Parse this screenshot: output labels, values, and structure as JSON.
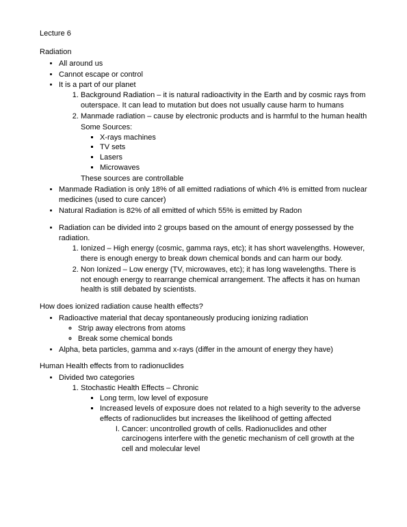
{
  "title": "Lecture 6",
  "h1": "Radiation",
  "b1": "All around us",
  "b2": "Cannot escape or control",
  "b3": "It is a part of our planet",
  "n1": "Background Radiation – it is natural radioactivity in the Earth and by cosmic rays from outerspace. It can lead to mutation but does not usually cause harm to humans",
  "n2": "Manmade radiation – cause by electronic products and is harmful to the human health",
  "srclabel": "Some Sources:",
  "s1": "X-rays machines",
  "s2": "TV sets",
  "s3": "Lasers",
  "s4": "Microwaves",
  "srcnote": "These sources are controllable",
  "b4": "Manmade Radiation is only 18% of all emitted radiations of which 4% is emitted from nuclear medicines (used to cure cancer)",
  "b5": "Natural Radiation is 82% of all emitted of which 55% is emitted by Radon",
  "b6": "Radiation can be divided into 2 groups based on the amount of energy possessed by the radiation.",
  "g1": "Ionized – High energy (cosmic, gamma rays, etc); it has short wavelengths. However, there is enough energy to break down chemical bonds and can harm our body.",
  "g2": "Non Ionized – Low energy (TV, microwaves, etc); it has long wavelengths. There is not enough energy to rearrange chemical arrangement. The affects it has on human health is still debated by scientists.",
  "h2": "How does ionized radiation cause health effects?",
  "c1": "Radioactive material that decay spontaneously producing ionizing radiation",
  "c1a": "Strip away electrons from atoms",
  "c1b": "Break some chemical bonds",
  "c2": "Alpha, beta particles, gamma and x-rays (differ in the amount of energy they have)",
  "h3": "Human Health effects from to radionuclides",
  "d1": "Divided two categories",
  "e1": "Stochastic Health Effects – Chronic",
  "f1": "Long term, low level of exposure",
  "f2": "Increased levels of exposure does not related to a high severity to the adverse effects of radionuclides but increases the likelihood of getting affected",
  "r1": "Cancer: uncontrolled growth of cells. Radionuclides and other carcinogens interfere with the genetic mechanism of cell growth at the cell and molecular level"
}
